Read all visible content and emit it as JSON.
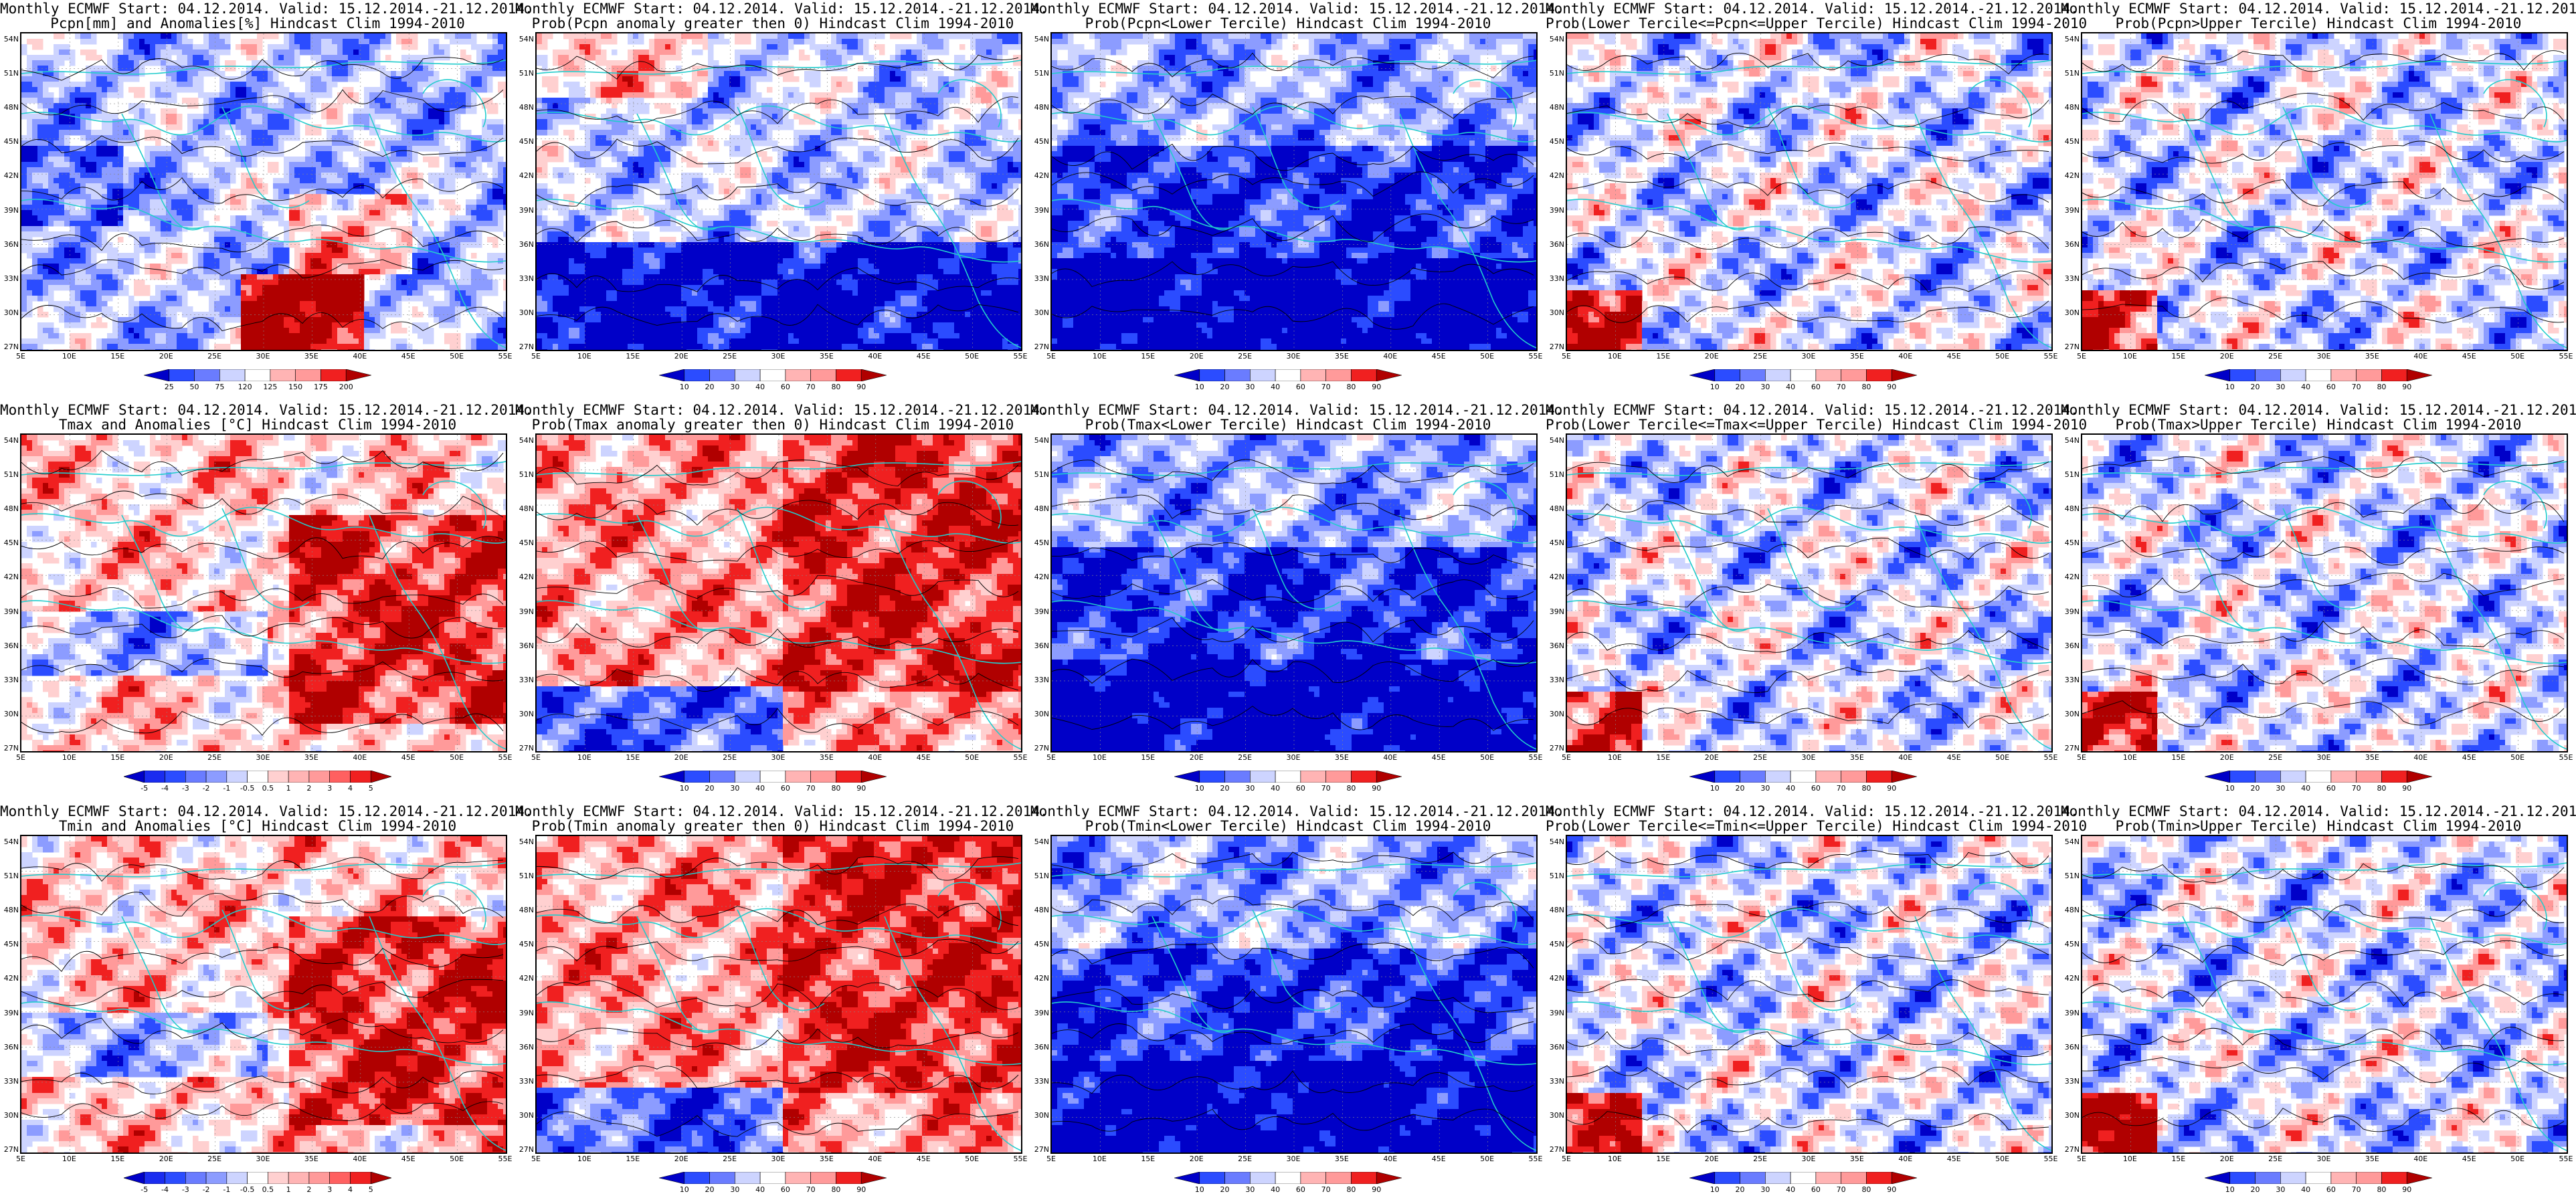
{
  "lat_labels": [
    "54N",
    "51N",
    "48N",
    "45N",
    "42N",
    "39N",
    "36N",
    "33N",
    "30N",
    "27N"
  ],
  "lon_labels": [
    "5E",
    "10E",
    "15E",
    "20E",
    "25E",
    "30E",
    "35E",
    "40E",
    "45E",
    "50E",
    "55E"
  ],
  "panels": [
    {
      "title1": "Monthly ECMWF Start: 04.12.2014. Valid: 15.12.2014.-21.12.2014.",
      "title2": "Pcpn[mm] and Anomalies[%] Hindcast Clim 1994-2010",
      "scheme": "pcpn",
      "colorbar": [
        "25",
        "50",
        "75",
        "120",
        "125",
        "150",
        "175",
        "200"
      ]
    },
    {
      "title1": "Monthly ECMWF Start: 04.12.2014. Valid: 15.12.2014.-21.12.2014.",
      "title2": "Prob(Pcpn anomaly greater then 0) Hindcast Clim 1994-2010",
      "scheme": "dry",
      "colorbar": [
        "10",
        "20",
        "30",
        "40",
        "60",
        "70",
        "80",
        "90"
      ]
    },
    {
      "title1": "Monthly ECMWF Start: 04.12.2014. Valid: 15.12.2014.-21.12.2014.",
      "title2": "Prob(Pcpn<Lower Tercile) Hindcast Clim 1994-2010",
      "scheme": "blue",
      "colorbar": [
        "10",
        "20",
        "30",
        "40",
        "60",
        "70",
        "80",
        "90"
      ]
    },
    {
      "title1": "Monthly ECMWF Start: 04.12.2014. Valid: 15.12.2014.-21.12.2014.",
      "title2": "Prob(Lower Tercile<=Pcpn<=Upper Tercile) Hindcast Clim 1994-2010",
      "scheme": "mixed",
      "colorbar": [
        "10",
        "20",
        "30",
        "40",
        "60",
        "70",
        "80",
        "90"
      ]
    },
    {
      "title1": "Monthly ECMWF Start: 04.12.2014. Valid: 15.12.2014.-21.12.2014.",
      "title2": "Prob(Pcpn>Upper Tercile) Hindcast Clim 1994-2010",
      "scheme": "mixed",
      "colorbar": [
        "10",
        "20",
        "30",
        "40",
        "60",
        "70",
        "80",
        "90"
      ]
    },
    {
      "title1": "Monthly ECMWF Start: 04.12.2014. Valid: 15.12.2014.-21.12.2014.",
      "title2": "Tmax and Anomalies [°C] Hindcast Clim 1994-2010",
      "scheme": "warm",
      "colorbar": [
        "-5",
        "-4",
        "-3",
        "-2",
        "-1",
        "-0.5",
        "0.5",
        "1",
        "2",
        "3",
        "4",
        "5"
      ]
    },
    {
      "title1": "Monthly ECMWF Start: 04.12.2014. Valid: 15.12.2014.-21.12.2014.",
      "title2": "Prob(Tmax anomaly greater then 0) Hindcast Clim 1994-2010",
      "scheme": "hot",
      "colorbar": [
        "10",
        "20",
        "30",
        "40",
        "60",
        "70",
        "80",
        "90"
      ]
    },
    {
      "title1": "Monthly ECMWF Start: 04.12.2014. Valid: 15.12.2014.-21.12.2014.",
      "title2": "Prob(Tmax<Lower Tercile) Hindcast Clim 1994-2010",
      "scheme": "blue",
      "colorbar": [
        "10",
        "20",
        "30",
        "40",
        "60",
        "70",
        "80",
        "90"
      ]
    },
    {
      "title1": "Monthly ECMWF Start: 04.12.2014. Valid: 15.12.2014.-21.12.2014.",
      "title2": "Prob(Lower Tercile<=Tmax<=Upper Tercile) Hindcast Clim 1994-2010",
      "scheme": "mixed",
      "colorbar": [
        "10",
        "20",
        "30",
        "40",
        "60",
        "70",
        "80",
        "90"
      ]
    },
    {
      "title1": "Monthly ECMWF Start: 04.12.2014. Valid: 15.12.2014.-21.12.2014.",
      "title2": "Prob(Tmax>Upper Tercile) Hindcast Clim 1994-2010",
      "scheme": "mixed",
      "colorbar": [
        "10",
        "20",
        "30",
        "40",
        "60",
        "70",
        "80",
        "90"
      ]
    },
    {
      "title1": "Monthly ECMWF Start: 04.12.2014. Valid: 15.12.2014.-21.12.2014.",
      "title2": "Tmin and Anomalies [°C] Hindcast Clim 1994-2010",
      "scheme": "warm",
      "colorbar": [
        "-5",
        "-4",
        "-3",
        "-2",
        "-1",
        "-0.5",
        "0.5",
        "1",
        "2",
        "3",
        "4",
        "5"
      ]
    },
    {
      "title1": "Monthly ECMWF Start: 04.12.2014. Valid: 15.12.2014.-21.12.2014.",
      "title2": "Prob(Tmin anomaly greater then 0) Hindcast Clim 1994-2010",
      "scheme": "hot",
      "colorbar": [
        "10",
        "20",
        "30",
        "40",
        "60",
        "70",
        "80",
        "90"
      ]
    },
    {
      "title1": "Monthly ECMWF Start: 04.12.2014. Valid: 15.12.2014.-21.12.2014.",
      "title2": "Prob(Tmin<Lower Tercile) Hindcast Clim 1994-2010",
      "scheme": "blue",
      "colorbar": [
        "10",
        "20",
        "30",
        "40",
        "60",
        "70",
        "80",
        "90"
      ]
    },
    {
      "title1": "Monthly ECMWF Start: 04.12.2014. Valid: 15.12.2014.-21.12.2014.",
      "title2": "Prob(Lower Tercile<=Tmin<=Upper Tercile) Hindcast Clim 1994-2010",
      "scheme": "mixed",
      "colorbar": [
        "10",
        "20",
        "30",
        "40",
        "60",
        "70",
        "80",
        "90"
      ]
    },
    {
      "title1": "Monthly ECMWF Start: 04.12.2014. Valid: 15.12.2014.-21.12.2014.",
      "title2": "Prob(Tmin>Upper Tercile) Hindcast Clim 1994-2010",
      "scheme": "mixed",
      "colorbar": [
        "10",
        "20",
        "30",
        "40",
        "60",
        "70",
        "80",
        "90"
      ]
    }
  ],
  "colors": {
    "deep_blue": "#0000c8",
    "blue": "#2b4cff",
    "light_blue": "#8c9cff",
    "pale_blue": "#cdd4ff",
    "pale_red": "#ffd0d0",
    "light_red": "#ff9a9a",
    "red": "#f02020",
    "dark_red": "#b00000",
    "coast": "#22cccc",
    "contour": "#000000"
  }
}
